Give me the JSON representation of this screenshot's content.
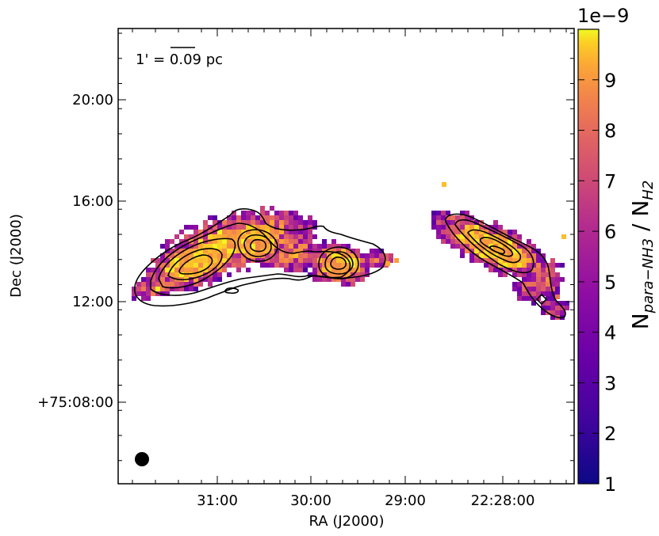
{
  "chart_data": {
    "type": "heatmap",
    "title": "",
    "xlabel": "RA (J2000)",
    "ylabel": "Dec (J2000)",
    "x_ticks": [
      "31:00",
      "30:00",
      "29:00",
      "22:28:00"
    ],
    "y_ticks": [
      "20:00",
      "16:00",
      "12:00",
      "+75:08:00"
    ],
    "scalebar_label": "1' = 0.09 pc",
    "colorbar": {
      "label_main": "N",
      "label_sub1": "para−NH3",
      "label_sep": " / N",
      "label_sub2": "H2",
      "exponent": "1e−9",
      "ticks": [
        "1",
        "2",
        "3",
        "4",
        "5",
        "6",
        "7",
        "8",
        "9"
      ],
      "range": [
        1,
        10
      ],
      "colormap": "plasma"
    },
    "beam": "filled circle, lower-left",
    "colors": {
      "frame": "#000000",
      "contour": "#000000"
    }
  }
}
